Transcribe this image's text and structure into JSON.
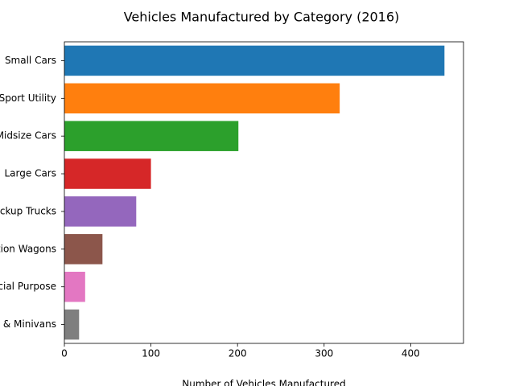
{
  "chart_data": {
    "type": "barh",
    "title": "Vehicles Manufactured by Category (2016)",
    "x_label": "Number of Vehicles Manufactured",
    "categories": [
      "Small Cars",
      "Sport Utility",
      "Midsize Cars",
      "Large Cars",
      "Pickup Trucks",
      "Station Wagons",
      "Special Purpose",
      "Vans & Minivans"
    ],
    "values": [
      439,
      318,
      201,
      100,
      83,
      44,
      24,
      17
    ],
    "colors": [
      "#1f77b4",
      "#ff7f0e",
      "#2ca02c",
      "#d62728",
      "#9467bd",
      "#8c564b",
      "#e377c2",
      "#7f7f7f"
    ],
    "xlim": [
      0,
      461
    ],
    "xticks": [
      0,
      100,
      200,
      300,
      400
    ],
    "grid": false
  }
}
